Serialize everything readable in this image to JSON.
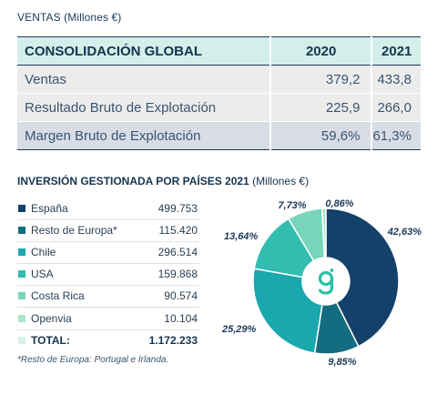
{
  "consolidation": {
    "caption": "VENTAS (Millones €)",
    "headers": [
      "CONSOLIDACIÓN GLOBAL",
      "2020",
      "2021"
    ],
    "rows": [
      {
        "label": "Ventas",
        "v2020": "379,2",
        "v2021": "433,8"
      },
      {
        "label": "Resultado Bruto de Explotación",
        "v2020": "225,9",
        "v2021": "266,0"
      },
      {
        "label": "Margen Bruto de Explotación",
        "v2020": "59,6%",
        "v2021": "61,3%"
      }
    ]
  },
  "investment": {
    "caption": "INVERSIÓN GESTIONADA POR PAÍSES 2021",
    "caption_unit": "(Millones €)",
    "total_label": "TOTAL:",
    "total_value": "1.172.233",
    "footnote": "*Resto de Europa: Portugal e Irlanda.",
    "center_icon": "g-logo-icon"
  },
  "chart_data": {
    "type": "pie",
    "donut": true,
    "title": "INVERSIÓN GESTIONADA POR PAÍSES 2021 (Millones €)",
    "series": [
      {
        "name": "España",
        "value": 499753,
        "value_label": "499.753",
        "percent": 42.63,
        "percent_label": "42,63%",
        "color": "#13416a"
      },
      {
        "name": "Resto de Europa*",
        "value": 115420,
        "value_label": "115.420",
        "percent": 9.85,
        "percent_label": "9,85%",
        "color": "#136c80"
      },
      {
        "name": "Chile",
        "value": 296514,
        "value_label": "296.514",
        "percent": 25.29,
        "percent_label": "25,29%",
        "color": "#1aa7ae"
      },
      {
        "name": "USA",
        "value": 159868,
        "value_label": "159.868",
        "percent": 13.64,
        "percent_label": "13,64%",
        "color": "#33bcb0"
      },
      {
        "name": "Costa Rica",
        "value": 90574,
        "value_label": "90.574",
        "percent": 7.73,
        "percent_label": "7,73%",
        "color": "#79d5b9"
      },
      {
        "name": "Openvia",
        "value": 10104,
        "value_label": "10.104",
        "percent": 0.86,
        "percent_label": "0,86%",
        "color": "#aee6cd"
      }
    ],
    "total_color": "#d7f1e5"
  }
}
